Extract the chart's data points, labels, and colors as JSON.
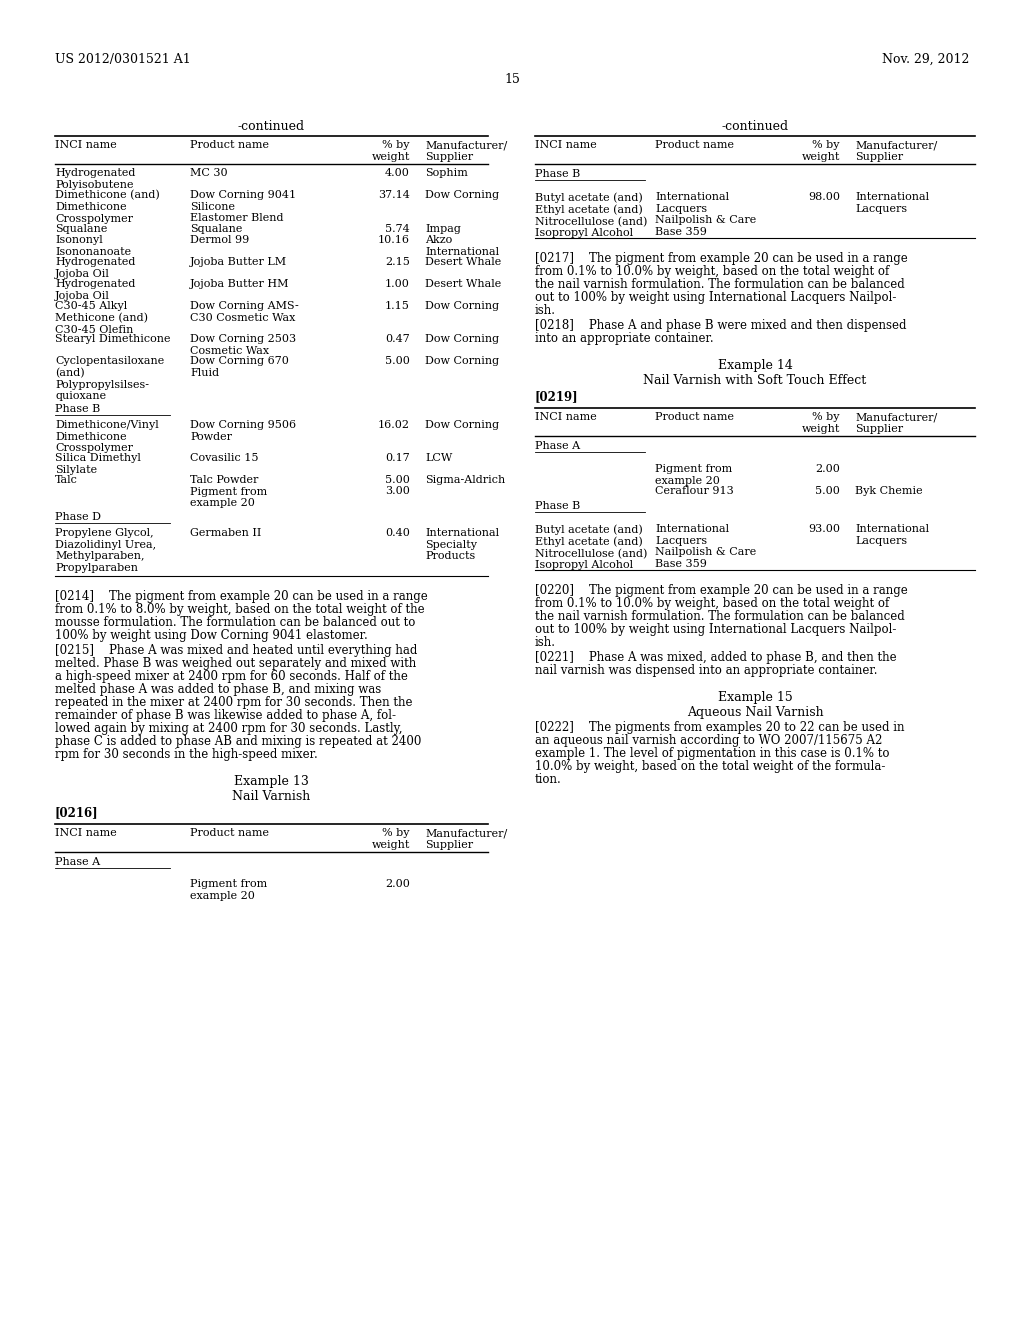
{
  "bg_color": "#ffffff",
  "header_left": "US 2012/0301521 A1",
  "header_right": "Nov. 29, 2012",
  "page_number": "15",
  "left_col_rows": [
    [
      "Hydrogenated\nPolyisobutene",
      "MC 30",
      "4.00",
      "Sophim"
    ],
    [
      "Dimethicone (and)\nDimethicone\nCrosspolymer",
      "Dow Corning 9041\nSilicone\nElastomer Blend",
      "37.14",
      "Dow Corning"
    ],
    [
      "Squalane",
      "Squalane",
      "5.74",
      "Impag"
    ],
    [
      "Isononyl\nIsononanoate",
      "Dermol 99",
      "10.16",
      "Akzo\nInternational"
    ],
    [
      "Hydrogenated\nJojoba Oil",
      "Jojoba Butter LM",
      "2.15",
      "Desert Whale"
    ],
    [
      "Hydrogenated\nJojoba Oil",
      "Jojoba Butter HM",
      "1.00",
      "Desert Whale"
    ],
    [
      "C30-45 Alkyl\nMethicone (and)\nC30-45 Olefin",
      "Dow Corning AMS-\nC30 Cosmetic Wax",
      "1.15",
      "Dow Corning"
    ],
    [
      "Stearyl Dimethicone",
      "Dow Corning 2503\nCosmetic Wax",
      "0.47",
      "Dow Corning"
    ],
    [
      "Cyclopentasiloxane\n(and)\nPolypropylsilses-\nquioxane",
      "Dow Corning 670\nFluid",
      "5.00",
      "Dow Corning"
    ],
    [
      "PHASE_B",
      "",
      "",
      ""
    ],
    [
      "Dimethicone/Vinyl\nDimethicone\nCrosspolymer",
      "Dow Corning 9506\nPowder",
      "16.02",
      "Dow Corning"
    ],
    [
      "Silica Dimethyl\nSilylate",
      "Covasilic 15",
      "0.17",
      "LCW"
    ],
    [
      "Talc",
      "Talc Powder\nPigment from\nexample 20",
      "5.00|3.00",
      "Sigma-Aldrich"
    ],
    [
      "PHASE_D",
      "",
      "",
      ""
    ],
    [
      "Propylene Glycol,\nDiazolidinyl Urea,\nMethylparaben,\nPropylparaben",
      "Germaben II",
      "0.40",
      "International\nSpecialty\nProducts"
    ]
  ],
  "lines_0214": [
    "[0214]    The pigment from example 20 can be used in a range",
    "from 0.1% to 8.0% by weight, based on the total weight of the",
    "mousse formulation. The formulation can be balanced out to",
    "100% by weight using Dow Corning 9041 elastomer."
  ],
  "lines_0215": [
    "[0215]    Phase A was mixed and heated until everything had",
    "melted. Phase B was weighed out separately and mixed with",
    "a high-speed mixer at 2400 rpm for 60 seconds. Half of the",
    "melted phase A was added to phase B, and mixing was",
    "repeated in the mixer at 2400 rpm for 30 seconds. Then the",
    "remainder of phase B was likewise added to phase A, fol-",
    "lowed again by mixing at 2400 rpm for 30 seconds. Lastly,",
    "phase C is added to phase AB and mixing is repeated at 2400",
    "rpm for 30 seconds in the high-speed mixer."
  ],
  "lines_0217": [
    "[0217]    The pigment from example 20 can be used in a range",
    "from 0.1% to 10.0% by weight, based on the total weight of",
    "the nail varnish formulation. The formulation can be balanced",
    "out to 100% by weight using International Lacquers Nailpol-",
    "ish."
  ],
  "lines_0218": [
    "[0218]    Phase A and phase B were mixed and then dispensed",
    "into an appropriate container."
  ],
  "lines_0220": [
    "[0220]    The pigment from example 20 can be used in a range",
    "from 0.1% to 10.0% by weight, based on the total weight of",
    "the nail varnish formulation. The formulation can be balanced",
    "out to 100% by weight using International Lacquers Nailpol-",
    "ish."
  ],
  "lines_0221": [
    "[0221]    Phase A was mixed, added to phase B, and then the",
    "nail varnish was dispensed into an appropriate container."
  ],
  "lines_0222": [
    "[0222]    The pigments from examples 20 to 22 can be used in",
    "an aqueous nail varnish according to WO 2007/115675 A2",
    "example 1. The level of pigmentation in this case is 0.1% to",
    "10.0% by weight, based on the total weight of the formula-",
    "tion."
  ]
}
